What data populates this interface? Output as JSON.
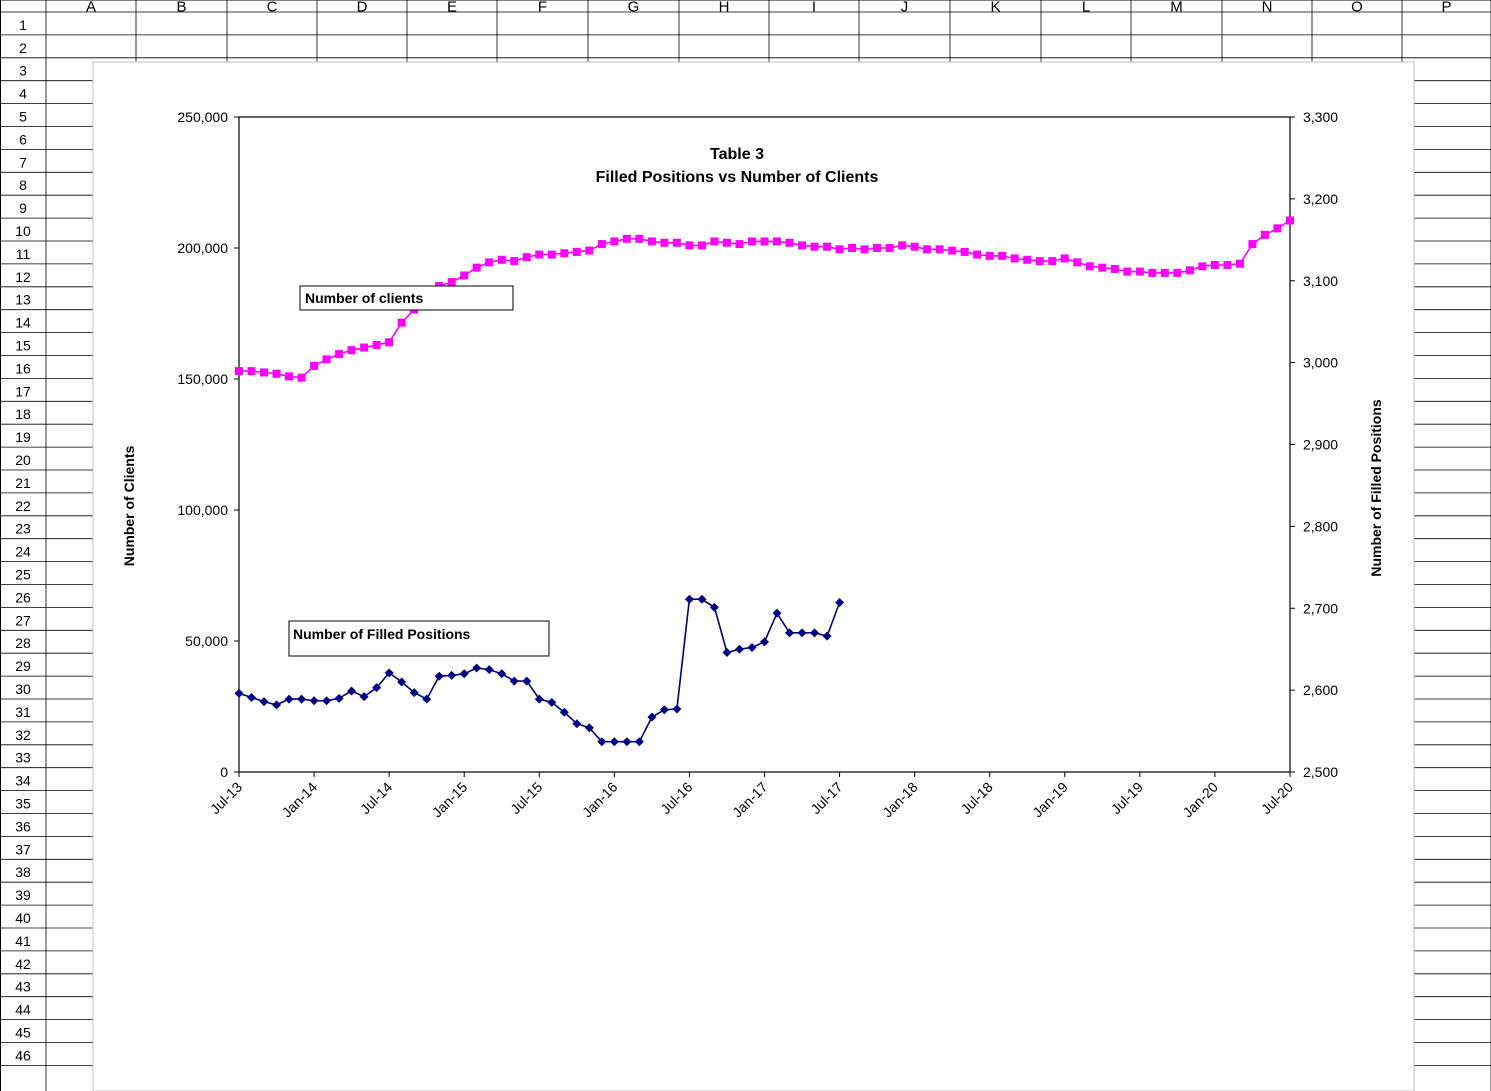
{
  "sheet": {
    "columns": [
      "A",
      "B",
      "C",
      "D",
      "E",
      "F",
      "G",
      "H",
      "I",
      "J",
      "K",
      "L",
      "M",
      "N",
      "O",
      "P"
    ],
    "rows": [
      "1",
      "2",
      "3",
      "4",
      "5",
      "6",
      "7",
      "8",
      "9",
      "10",
      "11",
      "12",
      "13",
      "14",
      "15",
      "16",
      "17",
      "18",
      "19",
      "20",
      "21",
      "22",
      "23",
      "24",
      "25",
      "26",
      "27",
      "28",
      "29",
      "30",
      "31",
      "32",
      "33",
      "34",
      "35",
      "36",
      "37",
      "38",
      "39",
      "40",
      "41",
      "42",
      "43",
      "44",
      "45",
      "46"
    ]
  },
  "chart_data": {
    "type": "line",
    "title_line1": "Table 3",
    "title_line2": "Filled Positions vs Number of Clients",
    "left_axis": {
      "title": "Number of Clients",
      "range": [
        0,
        250000
      ],
      "tick_labels": [
        "0",
        "50,000",
        "100,000",
        "150,000",
        "200,000",
        "250,000"
      ],
      "tick_values": [
        0,
        50000,
        100000,
        150000,
        200000,
        250000
      ]
    },
    "right_axis": {
      "title": "Number of Filled Positions",
      "range": [
        2500,
        3300
      ],
      "tick_labels": [
        "2,500",
        "2,600",
        "2,700",
        "2,800",
        "2,900",
        "3,000",
        "3,100",
        "3,200",
        "3,300"
      ],
      "tick_values": [
        2500,
        2600,
        2700,
        2800,
        2900,
        3000,
        3100,
        3200,
        3300
      ]
    },
    "x_axis": {
      "month_span": 84,
      "tick_labels": [
        "Jul-13",
        "Jan-14",
        "Jul-14",
        "Jan-15",
        "Jul-15",
        "Jan-16",
        "Jul-16",
        "Jan-17",
        "Jul-17",
        "Jan-18",
        "Jul-18",
        "Jan-19",
        "Jul-19",
        "Jan-20",
        "Jul-20"
      ],
      "tick_months": [
        0,
        6,
        12,
        18,
        24,
        30,
        36,
        42,
        48,
        54,
        60,
        66,
        72,
        78,
        84
      ]
    },
    "series": [
      {
        "name": "Number of clients",
        "axis": "left",
        "color": "#ff00ff",
        "marker": "square",
        "start_month": 0,
        "values": [
          153000,
          153000,
          152500,
          152000,
          151000,
          150500,
          155000,
          157500,
          159500,
          161000,
          162000,
          163000,
          164000,
          171500,
          176500,
          181500,
          185500,
          187000,
          189500,
          192500,
          194500,
          195500,
          195000,
          196500,
          197500,
          197500,
          198000,
          198500,
          199000,
          201500,
          202500,
          203500,
          203500,
          202500,
          202000,
          202000,
          201000,
          201000,
          202500,
          202000,
          201500,
          202500,
          202500,
          202500,
          202000,
          201000,
          200500,
          200500,
          199500,
          200000,
          199500,
          200000,
          200000,
          201000,
          200500,
          199500,
          199500,
          199000,
          198500,
          197500,
          197000,
          197000,
          196000,
          195500,
          195000,
          195000,
          196000,
          194500,
          193000,
          192500,
          192000,
          191000,
          191000,
          190500,
          190500,
          190500,
          191500,
          193000,
          193500,
          193500,
          194000,
          201500,
          205000,
          207500,
          210500
        ]
      },
      {
        "name": "Number of Filled Positions",
        "axis": "right",
        "color": "#000080",
        "marker": "diamond",
        "start_month": 0,
        "values": [
          2596,
          2591,
          2586,
          2582,
          2589,
          2589,
          2587,
          2587,
          2590,
          2599,
          2592,
          2603,
          2621,
          2610,
          2597,
          2589,
          2617,
          2618,
          2620,
          2627,
          2625,
          2620,
          2611,
          2611,
          2589,
          2585,
          2573,
          2559,
          2554,
          2537,
          2537,
          2537,
          2537,
          2567,
          2576,
          2577,
          2711,
          2711,
          2701,
          2646,
          2650,
          2652,
          2659,
          2694,
          2670,
          2670,
          2670,
          2666,
          2707
        ]
      }
    ],
    "labels": {
      "clients": "Number of clients",
      "positions": "Number of Filled Positions"
    },
    "grid": false,
    "legend": "none"
  }
}
